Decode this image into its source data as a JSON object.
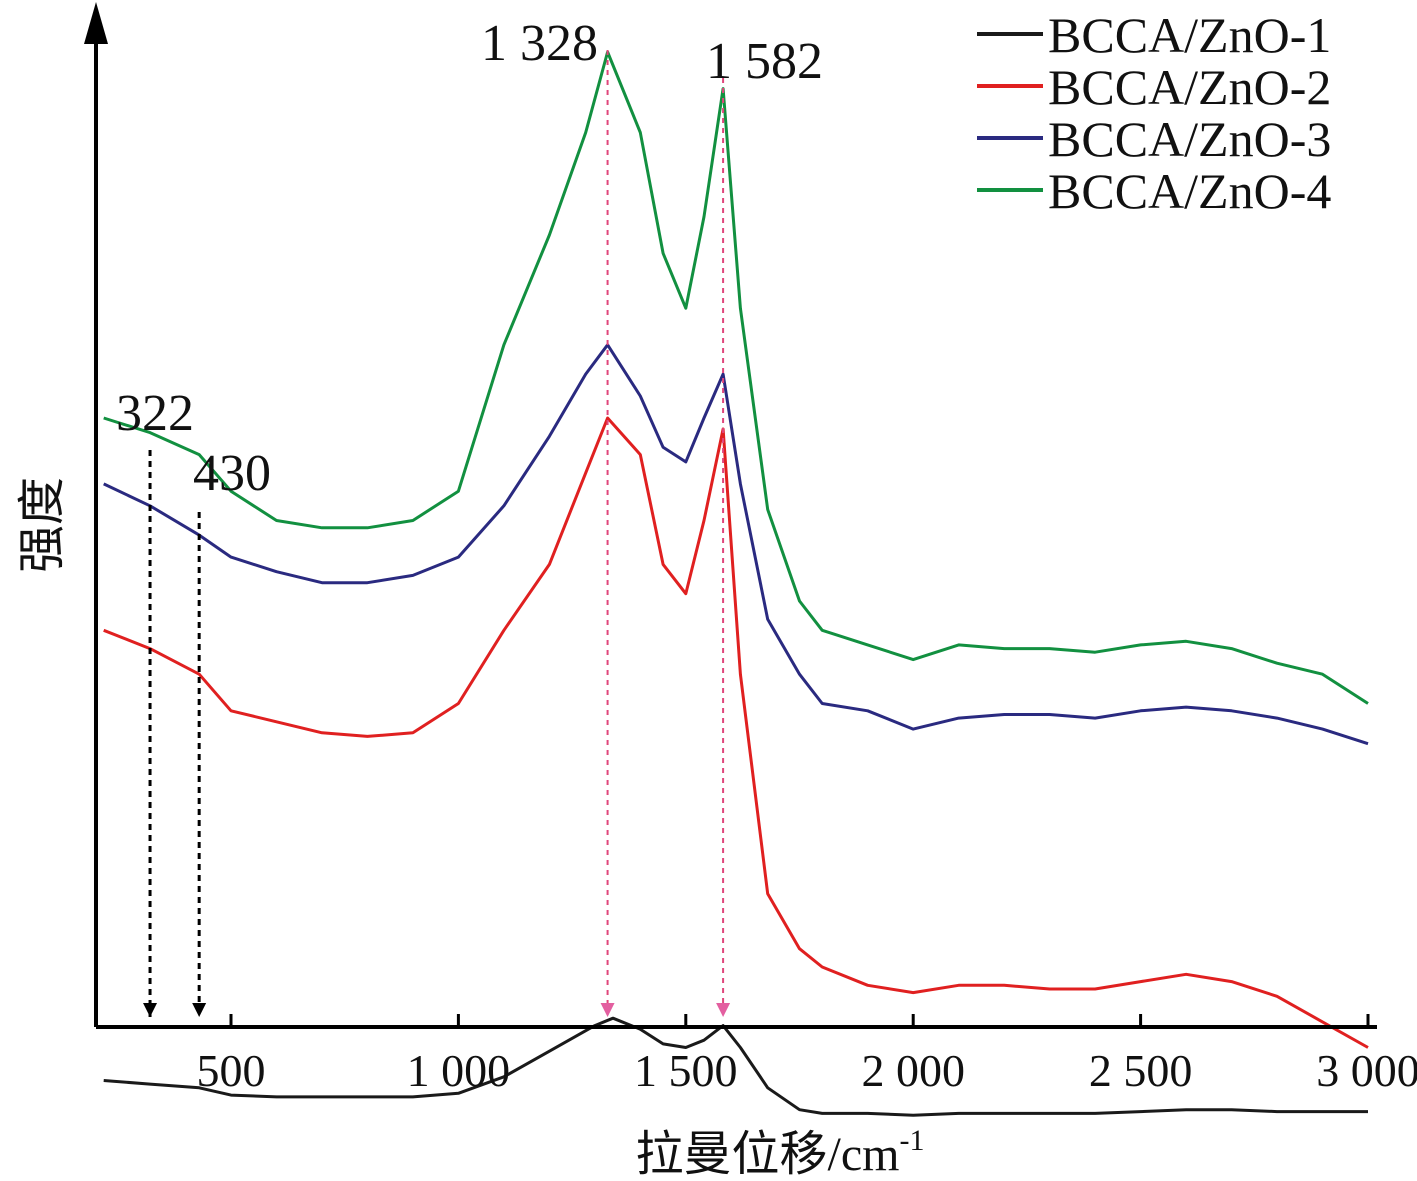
{
  "chart_data": {
    "type": "line",
    "xlabel": "拉曼位移/cm",
    "xlabel_superscript": "-1",
    "ylabel": "强度",
    "xlim": [
      200,
      3000
    ],
    "y_ticks_shown": false,
    "grid": false,
    "legend_position": "top-right",
    "x_ticks": [
      {
        "value": 500,
        "label": "500"
      },
      {
        "value": 1000,
        "label": "1 000"
      },
      {
        "value": 1500,
        "label": "1 500"
      },
      {
        "value": 2000,
        "label": "2 000"
      },
      {
        "value": 2500,
        "label": "2 500"
      },
      {
        "value": 3000,
        "label": "3 000"
      }
    ],
    "annotations": [
      {
        "x": 322,
        "label": "322",
        "color": "#000000"
      },
      {
        "x": 430,
        "label": "430",
        "color": "#000000"
      },
      {
        "x": 1328,
        "label": "1 328",
        "color": "#e0457b"
      },
      {
        "x": 1582,
        "label": "1 582",
        "color": "#e0457b"
      }
    ],
    "series": [
      {
        "name": "BCCA/ZnO-1",
        "color": "#1a1a1a",
        "x": [
          220,
          322,
          430,
          500,
          600,
          700,
          800,
          900,
          1000,
          1100,
          1200,
          1300,
          1340,
          1400,
          1450,
          1500,
          1540,
          1582,
          1620,
          1680,
          1750,
          1800,
          1900,
          2000,
          2100,
          2200,
          2300,
          2400,
          2500,
          2600,
          2700,
          2800,
          2900,
          3000
        ],
        "y": [
          0.19,
          0.18,
          0.17,
          0.15,
          0.145,
          0.145,
          0.145,
          0.145,
          0.155,
          0.2,
          0.27,
          0.34,
          0.36,
          0.33,
          0.29,
          0.28,
          0.3,
          0.34,
          0.28,
          0.17,
          0.11,
          0.1,
          0.1,
          0.095,
          0.1,
          0.1,
          0.1,
          0.1,
          0.105,
          0.11,
          0.11,
          0.105,
          0.105,
          0.105
        ]
      },
      {
        "name": "BCCA/ZnO-2",
        "color": "#e02020",
        "x": [
          220,
          322,
          430,
          500,
          600,
          700,
          800,
          900,
          1000,
          1100,
          1200,
          1280,
          1328,
          1400,
          1450,
          1500,
          1540,
          1582,
          1620,
          1680,
          1750,
          1800,
          1900,
          2000,
          2100,
          2200,
          2300,
          2400,
          2500,
          2600,
          2700,
          2800,
          2900,
          3000
        ],
        "y": [
          1.42,
          1.37,
          1.3,
          1.2,
          1.17,
          1.14,
          1.13,
          1.14,
          1.22,
          1.42,
          1.6,
          1.85,
          2.0,
          1.9,
          1.6,
          1.52,
          1.72,
          1.97,
          1.3,
          0.7,
          0.55,
          0.5,
          0.45,
          0.43,
          0.45,
          0.45,
          0.44,
          0.44,
          0.46,
          0.48,
          0.46,
          0.42,
          0.35,
          0.28
        ]
      },
      {
        "name": "BCCA/ZnO-3",
        "color": "#2a2a80",
        "x": [
          220,
          322,
          430,
          500,
          600,
          700,
          800,
          900,
          1000,
          1100,
          1200,
          1280,
          1328,
          1400,
          1450,
          1500,
          1540,
          1582,
          1620,
          1680,
          1750,
          1800,
          1900,
          2000,
          2100,
          2200,
          2300,
          2400,
          2500,
          2600,
          2700,
          2800,
          2900,
          3000
        ],
        "y": [
          1.82,
          1.76,
          1.68,
          1.62,
          1.58,
          1.55,
          1.55,
          1.57,
          1.62,
          1.76,
          1.95,
          2.12,
          2.2,
          2.06,
          1.92,
          1.88,
          2.0,
          2.12,
          1.82,
          1.45,
          1.3,
          1.22,
          1.2,
          1.15,
          1.18,
          1.19,
          1.19,
          1.18,
          1.2,
          1.21,
          1.2,
          1.18,
          1.15,
          1.11
        ]
      },
      {
        "name": "BCCA/ZnO-4",
        "color": "#129040",
        "x": [
          220,
          322,
          430,
          500,
          600,
          700,
          800,
          900,
          1000,
          1100,
          1200,
          1280,
          1328,
          1400,
          1450,
          1500,
          1540,
          1582,
          1620,
          1680,
          1750,
          1800,
          1900,
          2000,
          2100,
          2200,
          2300,
          2400,
          2500,
          2600,
          2700,
          2800,
          2900,
          3000
        ],
        "y": [
          2.0,
          1.96,
          1.9,
          1.8,
          1.72,
          1.7,
          1.7,
          1.72,
          1.8,
          2.2,
          2.5,
          2.78,
          3.0,
          2.78,
          2.45,
          2.3,
          2.55,
          2.9,
          2.3,
          1.75,
          1.5,
          1.42,
          1.38,
          1.34,
          1.38,
          1.37,
          1.37,
          1.36,
          1.38,
          1.39,
          1.37,
          1.33,
          1.3,
          1.22
        ]
      }
    ]
  }
}
